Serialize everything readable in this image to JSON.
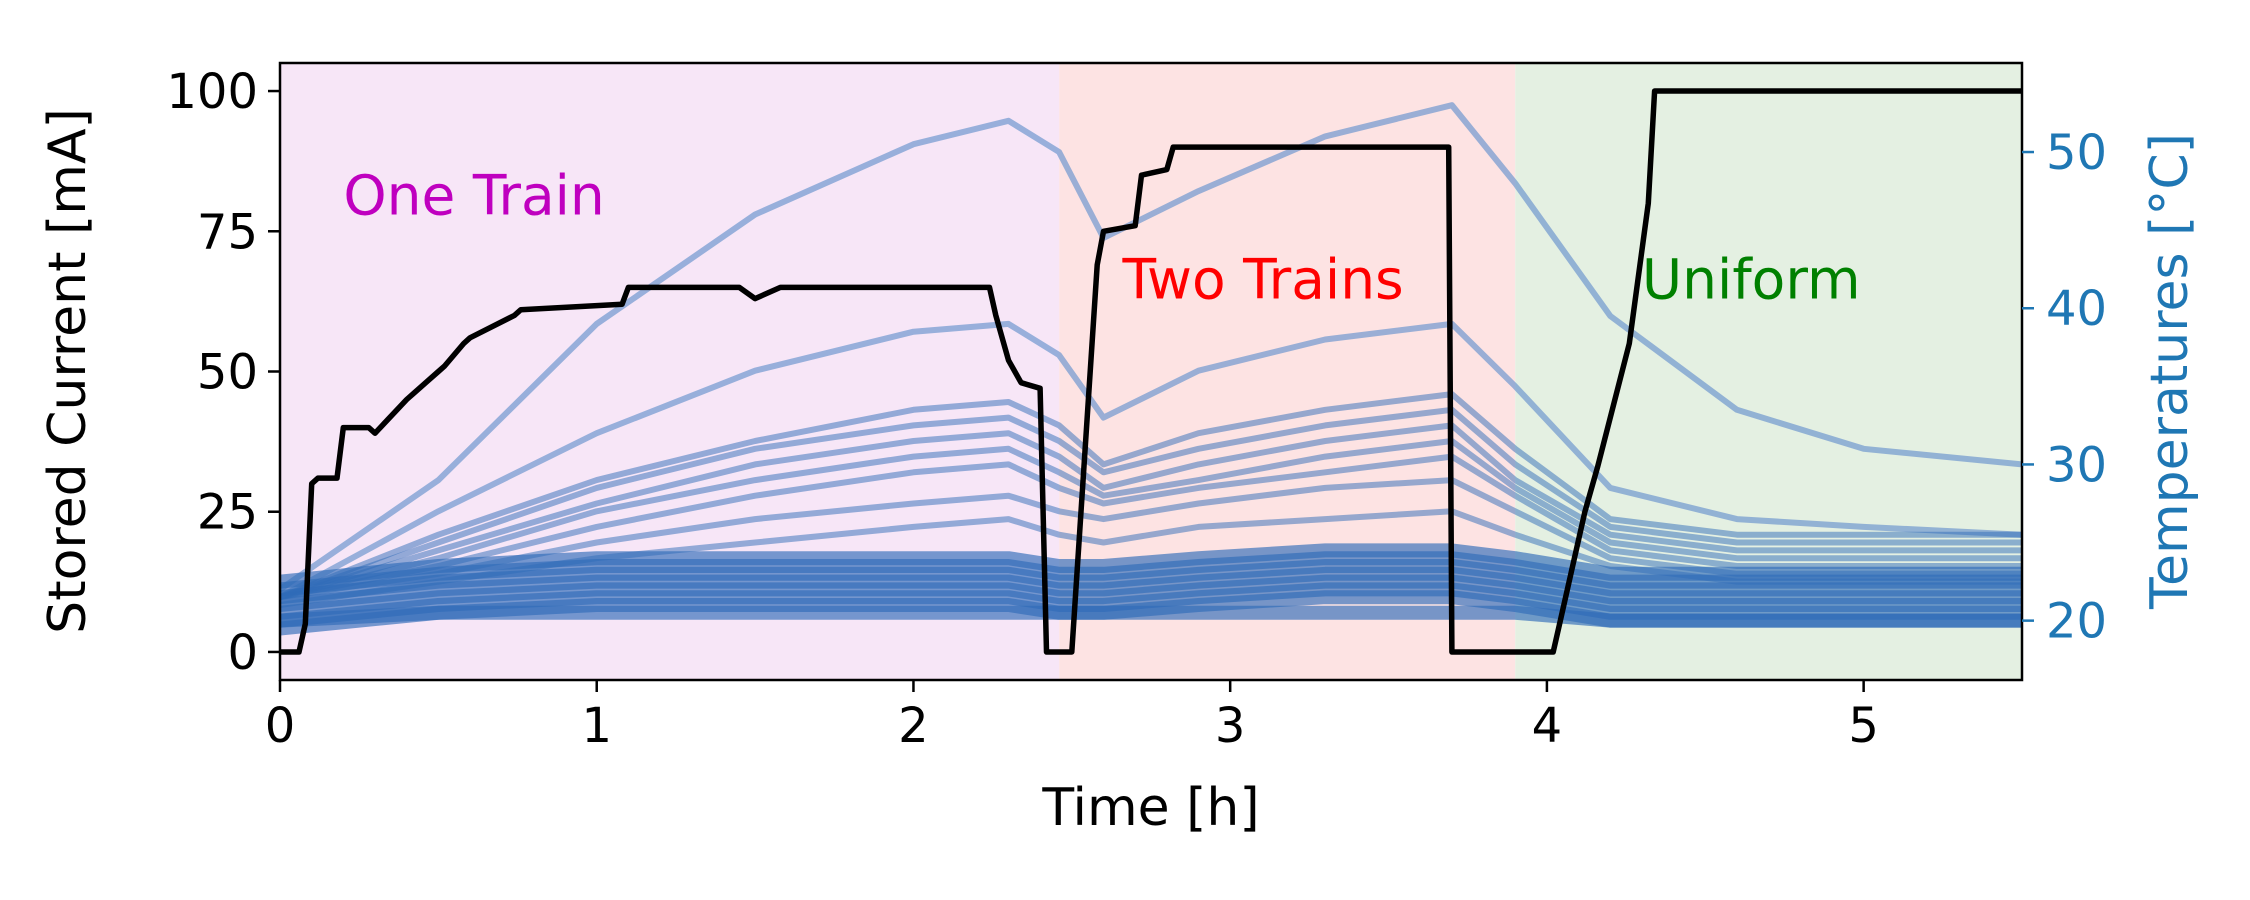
{
  "chart_data": {
    "type": "line",
    "xlabel": "Time [h]",
    "ylabel": "Stored Current [mA]",
    "y2label": "Temperatures [°C]",
    "xlim": [
      0,
      5.5
    ],
    "ylim": [
      -5,
      105
    ],
    "y2lim": [
      16.2,
      55.7
    ],
    "xticks": [
      "0",
      "1",
      "2",
      "3",
      "4",
      "5"
    ],
    "yticks": [
      "0",
      "25",
      "50",
      "75",
      "100"
    ],
    "y2ticks": [
      "20",
      "30",
      "40",
      "50"
    ],
    "colors": {
      "current": "#000000",
      "temperature_early": "#2f6bb8",
      "temperature_late": "#2a7fa6",
      "axis2": "#1f77b4",
      "one_train_bg": "#f7e6f7",
      "two_trains_bg": "#fde3e3",
      "uniform_bg": "#e4f0e2",
      "one_train_text": "#bf00bf",
      "two_trains_text": "#ff0000",
      "uniform_text": "#008000"
    },
    "regions": [
      {
        "label": "One Train",
        "x_start": 0,
        "x_end": 2.46,
        "label_x": 0.2,
        "label_y": 78
      },
      {
        "label": "Two Trains",
        "x_start": 2.46,
        "x_end": 3.9,
        "label_x": 2.66,
        "label_y": 63
      },
      {
        "label": "Uniform",
        "x_start": 3.9,
        "x_end": 5.5,
        "label_x": 4.3,
        "label_y": 63
      }
    ],
    "current_series": {
      "name": "Stored current",
      "x": [
        0,
        0.06,
        0.08,
        0.1,
        0.12,
        0.18,
        0.2,
        0.28,
        0.3,
        0.4,
        0.42,
        0.5,
        0.52,
        0.58,
        0.6,
        0.74,
        0.76,
        1.08,
        1.1,
        1.45,
        1.5,
        1.58,
        1.6,
        2.24,
        2.26,
        2.3,
        2.34,
        2.4,
        2.42,
        2.46,
        2.5,
        2.58,
        2.6,
        2.7,
        2.72,
        2.8,
        2.82,
        2.88,
        2.9,
        3.68,
        3.69,
        3.7,
        3.85,
        4.02,
        4.04,
        4.12,
        4.16,
        4.26,
        4.32,
        4.34,
        5.5
      ],
      "y": [
        0,
        0,
        5,
        30,
        31,
        31,
        40,
        40,
        39,
        45,
        46,
        50,
        51,
        55,
        56,
        60,
        61,
        62,
        65,
        65,
        63,
        65,
        65,
        65,
        60,
        52,
        48,
        47,
        0,
        0,
        0,
        69,
        75,
        76,
        85,
        86,
        90,
        90,
        90,
        90,
        90,
        0,
        0,
        0,
        5,
        25,
        33,
        55,
        80,
        100,
        100
      ]
    },
    "temperature_series": [
      {
        "x": [
          0,
          0.5,
          1.0,
          1.5,
          2.0,
          2.3,
          2.46,
          2.6,
          2.9,
          3.3,
          3.7,
          3.9,
          4.2,
          4.6,
          5.0,
          5.5
        ],
        "y": [
          22,
          29,
          39,
          46,
          50.5,
          52,
          50,
          44.5,
          47.5,
          51,
          53,
          48,
          39.5,
          33.5,
          31,
          30
        ]
      },
      {
        "x": [
          0,
          0.5,
          1.0,
          1.5,
          2.0,
          2.3,
          2.46,
          2.6,
          2.9,
          3.3,
          3.7,
          3.9,
          4.2,
          4.6,
          5.0,
          5.5
        ],
        "y": [
          21.5,
          27,
          32,
          36,
          38.5,
          39,
          37,
          33,
          36,
          38,
          39,
          35,
          28.5,
          26.5,
          26,
          25.5
        ]
      },
      {
        "x": [
          0,
          0.5,
          1.0,
          1.5,
          2.0,
          2.3,
          2.46,
          2.6,
          2.9,
          3.3,
          3.7,
          3.9,
          4.2,
          4.6,
          5.0,
          5.5
        ],
        "y": [
          21.5,
          25.5,
          29,
          31.5,
          33.5,
          34,
          32.5,
          30,
          32,
          33.5,
          34.5,
          31,
          26.5,
          25.5,
          25.5,
          25.5
        ]
      },
      {
        "x": [
          0,
          0.5,
          1.0,
          1.5,
          2.0,
          2.3,
          2.46,
          2.6,
          2.9,
          3.3,
          3.7,
          3.9,
          4.2,
          4.6,
          5.0,
          5.5
        ],
        "y": [
          21.5,
          25,
          28.5,
          31,
          32.5,
          33,
          31.5,
          29.5,
          31,
          32.5,
          33.5,
          30,
          26,
          25,
          25,
          25
        ]
      },
      {
        "x": [
          0,
          0.5,
          1.0,
          1.5,
          2.0,
          2.3,
          2.46,
          2.6,
          2.9,
          3.3,
          3.7,
          3.9,
          4.2,
          4.6,
          5.0,
          5.5
        ],
        "y": [
          21.5,
          24.5,
          27.5,
          30,
          31.5,
          32,
          30.5,
          28.5,
          30,
          31.5,
          32.5,
          29,
          25.5,
          24.5,
          24.5,
          24.5
        ]
      },
      {
        "x": [
          0,
          0.5,
          1.0,
          1.5,
          2.0,
          2.3,
          2.46,
          2.6,
          2.9,
          3.3,
          3.7,
          3.9,
          4.2,
          4.6,
          5.0,
          5.5
        ],
        "y": [
          21.5,
          24,
          27,
          29,
          30.5,
          31,
          29.5,
          28,
          29,
          30.5,
          31.5,
          28.5,
          25,
          24,
          24,
          24
        ]
      },
      {
        "x": [
          0,
          0.5,
          1.0,
          1.5,
          2.0,
          2.3,
          2.46,
          2.6,
          2.9,
          3.3,
          3.7,
          3.9,
          4.2,
          4.6,
          5.0,
          5.5
        ],
        "y": [
          21.5,
          23.5,
          26,
          28,
          29.5,
          30,
          28.5,
          27.5,
          28.5,
          29.5,
          30.5,
          28,
          24.5,
          23.5,
          23.5,
          23.5
        ]
      },
      {
        "x": [
          0,
          0.5,
          1.0,
          1.5,
          2.0,
          2.3,
          2.46,
          2.6,
          2.9,
          3.3,
          3.7,
          3.9,
          4.2,
          4.6,
          5.0,
          5.5
        ],
        "y": [
          21.5,
          23,
          25,
          26.5,
          27.5,
          28,
          27,
          26.5,
          27.5,
          28.5,
          29,
          27,
          24,
          23,
          23,
          23
        ]
      },
      {
        "x": [
          0,
          0.5,
          1.0,
          1.5,
          2.0,
          2.3,
          2.46,
          2.6,
          2.9,
          3.3,
          3.7,
          3.9,
          4.2,
          4.6,
          5.0,
          5.5
        ],
        "y": [
          21,
          22.5,
          24,
          25,
          26,
          26.5,
          25.5,
          25,
          26,
          26.5,
          27,
          25.5,
          23.5,
          22.5,
          22.5,
          22.5
        ]
      },
      {
        "x": [
          0,
          0.5,
          1.0,
          1.5,
          2.0,
          2.3,
          2.46,
          2.6,
          2.9,
          3.3,
          3.7,
          3.9,
          4.2,
          4.6,
          5.0,
          5.5
        ],
        "y": [
          22.5,
          23.5,
          24,
          24,
          24,
          24,
          23.5,
          23.5,
          24,
          24.5,
          24.5,
          24,
          23,
          23,
          23,
          23
        ]
      },
      {
        "x": [
          0,
          0.5,
          1.0,
          1.5,
          2.0,
          2.3,
          2.46,
          2.6,
          2.9,
          3.3,
          3.7,
          3.9,
          4.2,
          4.6,
          5.0,
          5.5
        ],
        "y": [
          22,
          23,
          23.5,
          23.5,
          23.5,
          23.5,
          23,
          23,
          23.5,
          24,
          24,
          23.5,
          22.5,
          22.5,
          22.5,
          22.5
        ]
      },
      {
        "x": [
          0,
          0.5,
          1.0,
          1.5,
          2.0,
          2.3,
          2.46,
          2.6,
          2.9,
          3.3,
          3.7,
          3.9,
          4.2,
          4.6,
          5.0,
          5.5
        ],
        "y": [
          21.5,
          22.5,
          23,
          23,
          23,
          23,
          22.5,
          22.5,
          23,
          23.5,
          23.5,
          23,
          22,
          22,
          22,
          22
        ]
      },
      {
        "x": [
          0,
          0.5,
          1.0,
          1.5,
          2.0,
          2.3,
          2.46,
          2.6,
          2.9,
          3.3,
          3.7,
          3.9,
          4.2,
          4.6,
          5.0,
          5.5
        ],
        "y": [
          21,
          22,
          22.5,
          22.5,
          22.5,
          22.5,
          22,
          22,
          22.5,
          23,
          23,
          22.5,
          21.5,
          21.5,
          21.5,
          21.5
        ]
      },
      {
        "x": [
          0,
          0.5,
          1.0,
          1.5,
          2.0,
          2.3,
          2.46,
          2.6,
          2.9,
          3.3,
          3.7,
          3.9,
          4.2,
          4.6,
          5.0,
          5.5
        ],
        "y": [
          20.5,
          21.5,
          22,
          22,
          22,
          22,
          21.5,
          21.5,
          22,
          22.5,
          22.5,
          22,
          21,
          21,
          21,
          21
        ]
      },
      {
        "x": [
          0,
          0.5,
          1.0,
          1.5,
          2.0,
          2.3,
          2.46,
          2.6,
          2.9,
          3.3,
          3.7,
          3.9,
          4.2,
          4.6,
          5.0,
          5.5
        ],
        "y": [
          20,
          21,
          21.5,
          21.5,
          21.5,
          21.5,
          21,
          21,
          21.5,
          22,
          22,
          21.5,
          20.5,
          20.5,
          20.5,
          20.5
        ]
      },
      {
        "x": [
          0,
          0.5,
          1.0,
          1.5,
          2.0,
          2.3,
          2.46,
          2.6,
          2.9,
          3.3,
          3.7,
          3.9,
          4.2,
          4.6,
          5.0,
          5.5
        ],
        "y": [
          19.5,
          20.5,
          21,
          21,
          21,
          21,
          20.5,
          20.5,
          21,
          21.5,
          21.5,
          21,
          20,
          20,
          20,
          20
        ]
      },
      {
        "x": [
          0,
          0.5,
          1.0,
          1.5,
          2.0,
          2.3,
          2.46,
          2.6,
          2.9,
          3.3,
          3.7,
          3.9,
          4.2,
          4.6,
          5.0,
          5.5
        ],
        "y": [
          20,
          20.5,
          20.5,
          20.5,
          20.5,
          20.5,
          20.5,
          20.5,
          20.5,
          20.5,
          20.5,
          20.5,
          20,
          20,
          20,
          20
        ]
      }
    ]
  }
}
